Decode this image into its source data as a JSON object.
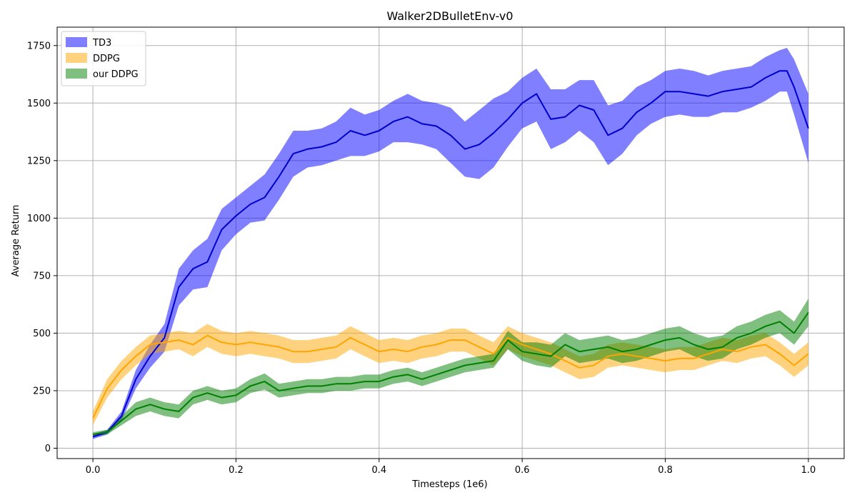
{
  "chart_data": {
    "type": "line",
    "title": "Walker2DBulletEnv-v0",
    "xlabel": "Timesteps (1e6)",
    "ylabel": "Average Return",
    "xlim": [
      -0.05,
      1.05
    ],
    "ylim": [
      -45,
      1830
    ],
    "xticks": [
      0.0,
      0.2,
      0.4,
      0.6,
      0.8,
      1.0
    ],
    "xtick_labels": [
      "0.0",
      "0.2",
      "0.4",
      "0.6",
      "0.8",
      "1.0"
    ],
    "yticks": [
      0,
      250,
      500,
      750,
      1000,
      1250,
      1500,
      1750
    ],
    "ytick_labels": [
      "0",
      "250",
      "500",
      "750",
      "1000",
      "1250",
      "1500",
      "1750"
    ],
    "grid": true,
    "legend_position": "top-left",
    "series": [
      {
        "name": "TD3",
        "line_color": "#0000cc",
        "band_color": "#0000ff",
        "x": [
          0.0,
          0.02,
          0.04,
          0.06,
          0.08,
          0.1,
          0.12,
          0.14,
          0.16,
          0.18,
          0.2,
          0.22,
          0.24,
          0.26,
          0.28,
          0.3,
          0.32,
          0.34,
          0.36,
          0.38,
          0.4,
          0.42,
          0.44,
          0.46,
          0.48,
          0.5,
          0.52,
          0.54,
          0.56,
          0.58,
          0.6,
          0.62,
          0.64,
          0.66,
          0.68,
          0.7,
          0.72,
          0.74,
          0.76,
          0.78,
          0.8,
          0.82,
          0.84,
          0.86,
          0.88,
          0.9,
          0.92,
          0.94,
          0.96,
          0.97,
          0.98,
          1.0
        ],
        "values": [
          50,
          70,
          140,
          300,
          400,
          480,
          700,
          780,
          810,
          950,
          1010,
          1060,
          1090,
          1180,
          1280,
          1300,
          1310,
          1330,
          1380,
          1360,
          1380,
          1420,
          1440,
          1410,
          1400,
          1360,
          1300,
          1320,
          1370,
          1430,
          1500,
          1540,
          1430,
          1440,
          1490,
          1470,
          1360,
          1390,
          1460,
          1500,
          1550,
          1550,
          1540,
          1530,
          1550,
          1560,
          1570,
          1610,
          1640,
          1640,
          1570,
          1390
        ],
        "lower": [
          40,
          60,
          120,
          260,
          350,
          420,
          620,
          690,
          700,
          860,
          930,
          980,
          990,
          1080,
          1180,
          1220,
          1230,
          1250,
          1270,
          1270,
          1290,
          1330,
          1330,
          1320,
          1300,
          1240,
          1180,
          1170,
          1220,
          1310,
          1390,
          1420,
          1300,
          1330,
          1380,
          1330,
          1230,
          1280,
          1360,
          1410,
          1440,
          1450,
          1440,
          1440,
          1460,
          1460,
          1480,
          1510,
          1550,
          1550,
          1450,
          1240
        ],
        "upper": [
          60,
          80,
          160,
          340,
          450,
          540,
          780,
          860,
          910,
          1040,
          1090,
          1140,
          1190,
          1280,
          1380,
          1380,
          1390,
          1420,
          1480,
          1450,
          1470,
          1510,
          1540,
          1510,
          1500,
          1480,
          1420,
          1470,
          1520,
          1550,
          1610,
          1650,
          1560,
          1560,
          1600,
          1600,
          1490,
          1510,
          1570,
          1600,
          1640,
          1650,
          1640,
          1620,
          1640,
          1650,
          1660,
          1700,
          1730,
          1740,
          1690,
          1540
        ]
      },
      {
        "name": "DDPG",
        "line_color": "#ffa500",
        "band_color": "#ffa500",
        "x": [
          0.0,
          0.02,
          0.04,
          0.06,
          0.08,
          0.1,
          0.12,
          0.14,
          0.16,
          0.18,
          0.2,
          0.22,
          0.24,
          0.26,
          0.28,
          0.3,
          0.32,
          0.34,
          0.36,
          0.38,
          0.4,
          0.42,
          0.44,
          0.46,
          0.48,
          0.5,
          0.52,
          0.54,
          0.56,
          0.58,
          0.6,
          0.62,
          0.64,
          0.66,
          0.68,
          0.7,
          0.72,
          0.74,
          0.76,
          0.78,
          0.8,
          0.82,
          0.84,
          0.86,
          0.88,
          0.9,
          0.92,
          0.94,
          0.96,
          0.98,
          1.0
        ],
        "values": [
          130,
          260,
          340,
          400,
          450,
          460,
          470,
          450,
          490,
          460,
          450,
          460,
          450,
          440,
          420,
          420,
          430,
          440,
          480,
          450,
          420,
          430,
          420,
          440,
          450,
          470,
          470,
          440,
          410,
          480,
          450,
          430,
          410,
          380,
          350,
          360,
          400,
          410,
          400,
          390,
          380,
          390,
          390,
          410,
          430,
          420,
          440,
          450,
          410,
          360,
          410
        ],
        "lower": [
          100,
          220,
          300,
          360,
          410,
          420,
          430,
          400,
          440,
          410,
          400,
          410,
          400,
          390,
          370,
          370,
          380,
          390,
          430,
          400,
          370,
          380,
          370,
          390,
          400,
          420,
          420,
          390,
          360,
          430,
          400,
          380,
          360,
          330,
          300,
          310,
          350,
          360,
          350,
          340,
          330,
          340,
          340,
          360,
          380,
          370,
          390,
          400,
          360,
          310,
          360
        ],
        "upper": [
          160,
          300,
          380,
          440,
          490,
          500,
          510,
          500,
          540,
          510,
          500,
          510,
          500,
          490,
          470,
          470,
          480,
          490,
          530,
          500,
          470,
          480,
          470,
          490,
          500,
          520,
          520,
          490,
          460,
          530,
          500,
          480,
          460,
          430,
          400,
          410,
          450,
          460,
          450,
          440,
          430,
          440,
          440,
          460,
          480,
          470,
          490,
          500,
          460,
          410,
          460
        ]
      },
      {
        "name": "our DDPG",
        "line_color": "#008000",
        "band_color": "#008000",
        "x": [
          0.0,
          0.02,
          0.04,
          0.06,
          0.08,
          0.1,
          0.12,
          0.14,
          0.16,
          0.18,
          0.2,
          0.22,
          0.24,
          0.26,
          0.28,
          0.3,
          0.32,
          0.34,
          0.36,
          0.38,
          0.4,
          0.42,
          0.44,
          0.46,
          0.48,
          0.5,
          0.52,
          0.54,
          0.56,
          0.58,
          0.6,
          0.62,
          0.64,
          0.66,
          0.68,
          0.7,
          0.72,
          0.74,
          0.76,
          0.78,
          0.8,
          0.82,
          0.84,
          0.86,
          0.88,
          0.9,
          0.92,
          0.94,
          0.96,
          0.98,
          1.0
        ],
        "values": [
          60,
          70,
          120,
          170,
          190,
          170,
          160,
          220,
          240,
          220,
          230,
          270,
          290,
          250,
          260,
          270,
          270,
          280,
          280,
          290,
          290,
          310,
          320,
          300,
          320,
          340,
          360,
          370,
          380,
          470,
          420,
          410,
          400,
          450,
          420,
          430,
          440,
          420,
          430,
          450,
          470,
          480,
          450,
          430,
          440,
          480,
          500,
          530,
          550,
          500,
          590
        ],
        "lower": [
          50,
          60,
          100,
          140,
          160,
          140,
          130,
          190,
          210,
          190,
          200,
          240,
          255,
          220,
          230,
          240,
          240,
          250,
          250,
          260,
          260,
          280,
          290,
          270,
          290,
          310,
          330,
          340,
          350,
          430,
          380,
          360,
          350,
          400,
          370,
          380,
          390,
          370,
          380,
          400,
          420,
          430,
          400,
          380,
          390,
          430,
          450,
          480,
          500,
          450,
          530
        ],
        "upper": [
          70,
          80,
          140,
          200,
          220,
          200,
          190,
          250,
          270,
          250,
          260,
          300,
          325,
          280,
          290,
          300,
          300,
          310,
          310,
          320,
          320,
          340,
          350,
          330,
          350,
          370,
          390,
          400,
          410,
          510,
          460,
          460,
          450,
          500,
          470,
          480,
          490,
          470,
          480,
          500,
          520,
          530,
          500,
          480,
          490,
          530,
          550,
          580,
          600,
          550,
          650
        ]
      }
    ]
  }
}
